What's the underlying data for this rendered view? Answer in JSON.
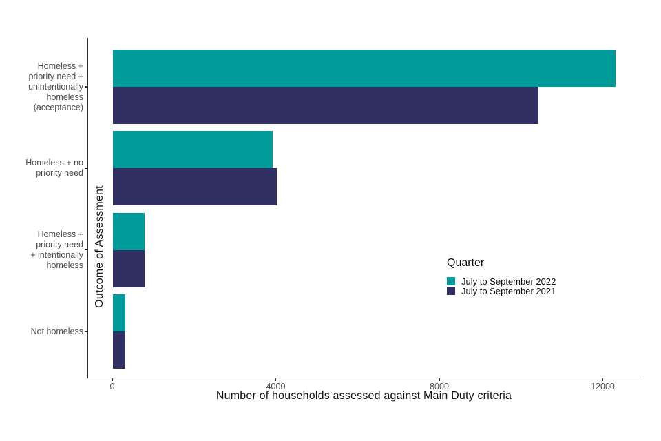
{
  "chart_data": {
    "type": "bar",
    "orientation": "horizontal",
    "title": "",
    "xlabel": "Number of households assessed against Main Duty criteria",
    "ylabel": "Outcome of Assessment",
    "categories": [
      [
        "Homeless +",
        "priority need +",
        "unintentionally",
        "homeless",
        "(acceptance)"
      ],
      [
        "Homeless + no",
        "priority need"
      ],
      [
        "Homeless +",
        "priority need",
        "+ intentionally",
        "homeless"
      ],
      [
        "Not homeless"
      ]
    ],
    "series": [
      {
        "name": "July to September 2022",
        "color": "#009A9A",
        "values": [
          12300,
          3900,
          780,
          310
        ]
      },
      {
        "name": "July to September 2021",
        "color": "#322F63",
        "values": [
          10400,
          4000,
          770,
          310
        ]
      }
    ],
    "x_ticks": [
      "0",
      "4000",
      "8000",
      "12000"
    ],
    "x_tick_values": [
      0,
      4000,
      8000,
      12000
    ],
    "xlim": [
      -600,
      12900
    ],
    "legend": {
      "title": "Quarter",
      "position": "right-middle"
    },
    "grid": false,
    "colors": {
      "axis": "#2e2e2e",
      "tick_text": "#4d4d4d",
      "title_text": "#111111",
      "background": "#ffffff"
    }
  }
}
